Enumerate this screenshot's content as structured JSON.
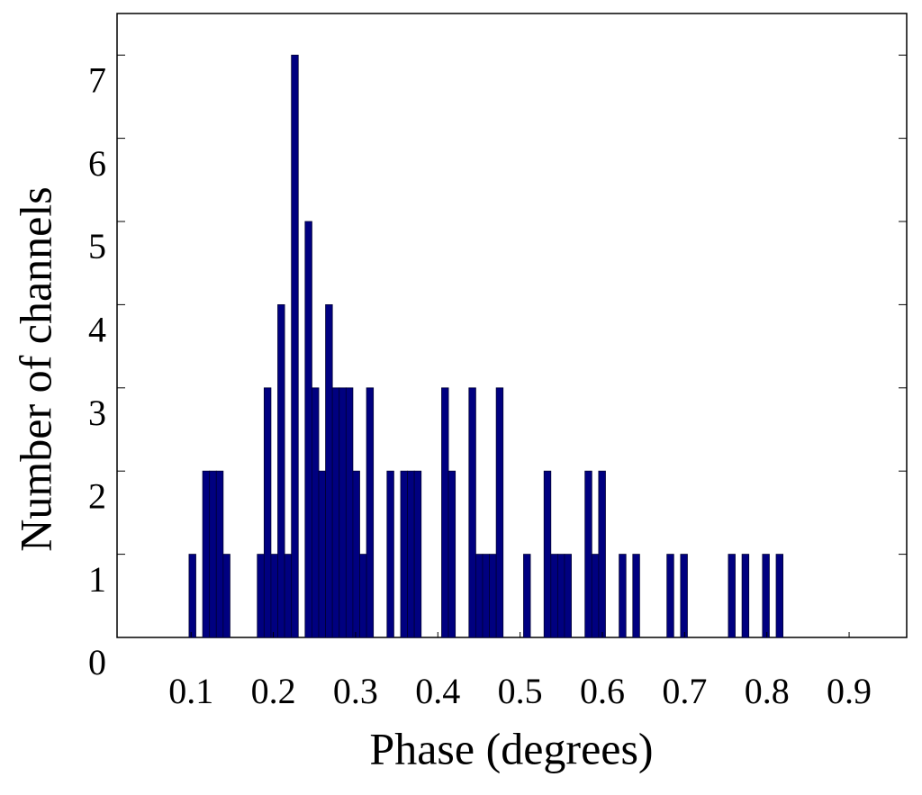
{
  "chart_data": {
    "type": "histogram",
    "xlabel": "Phase (degrees)",
    "ylabel": "Number of channels",
    "color": "#000080",
    "bins": [
      0.0975,
      0.1058,
      0.1141,
      0.1224,
      0.1307,
      0.139,
      0.1473,
      0.1556,
      0.1639,
      0.1722,
      0.1805,
      0.1888,
      0.1971,
      0.2054,
      0.2137,
      0.222,
      0.2303,
      0.2386,
      0.2469,
      0.2552,
      0.2635,
      0.2718,
      0.2801,
      0.2884,
      0.2967,
      0.305,
      0.3133,
      0.3216,
      0.3299,
      0.3382,
      0.3465,
      0.3548,
      0.3631,
      0.3714,
      0.3797,
      0.388,
      0.3963,
      0.4046,
      0.4129,
      0.4212,
      0.4295,
      0.4378,
      0.4461,
      0.4544,
      0.4627,
      0.471,
      0.4793,
      0.4876,
      0.4959,
      0.5042,
      0.5125,
      0.5208,
      0.5291,
      0.5374,
      0.5457,
      0.554,
      0.5623,
      0.5706,
      0.5789,
      0.5872,
      0.5955,
      0.6038,
      0.6121,
      0.6204,
      0.6287,
      0.637,
      0.6453,
      0.6536,
      0.6619,
      0.6702,
      0.6785,
      0.6868,
      0.6951,
      0.7034,
      0.7117,
      0.72,
      0.7283,
      0.7366,
      0.7449,
      0.7532,
      0.7615,
      0.7698,
      0.7781,
      0.7864,
      0.7947,
      0.803,
      0.8113,
      0.8196
    ],
    "values": [
      1,
      0,
      2,
      2,
      2,
      1,
      0,
      0,
      0,
      0,
      1,
      3,
      1,
      4,
      1,
      7,
      0,
      5,
      3,
      2,
      4,
      3,
      3,
      3,
      2,
      1,
      3,
      0,
      0,
      2,
      0,
      2,
      2,
      2,
      0,
      0,
      0,
      3,
      2,
      0,
      0,
      3,
      1,
      1,
      1,
      3,
      0,
      0,
      0,
      1,
      0,
      0,
      2,
      1,
      1,
      1,
      0,
      0,
      2,
      1,
      2,
      0,
      0,
      1,
      0,
      1,
      0,
      0,
      0,
      0,
      1,
      0,
      1,
      0,
      0,
      0,
      0,
      0,
      0,
      1,
      0,
      1,
      0,
      0,
      1,
      0,
      1
    ],
    "xlim": [
      0.01,
      0.97
    ],
    "xticks": [
      0.1,
      0.2,
      0.3,
      0.4,
      0.5,
      0.6,
      0.7,
      0.8,
      0.9
    ],
    "ylim": [
      0,
      7.5
    ],
    "yticks": [
      0,
      1,
      2,
      3,
      4,
      5,
      6,
      7
    ]
  }
}
